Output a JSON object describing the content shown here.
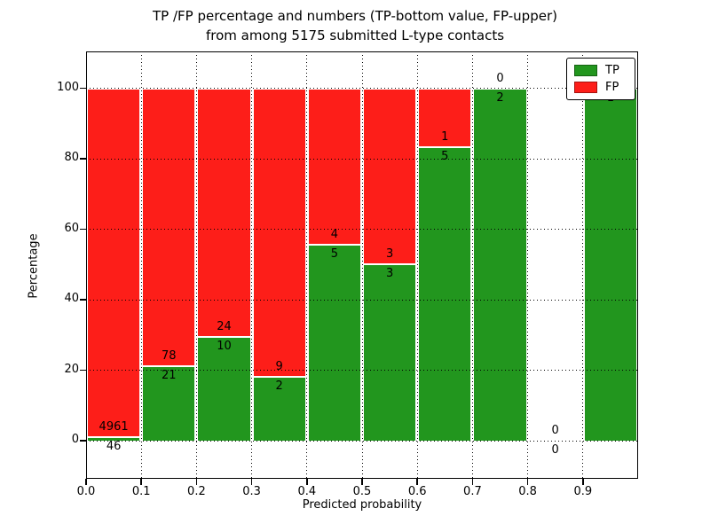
{
  "title_line1": "TP /FP percentage and numbers (TP-bottom value, FP-upper)",
  "title_line2": "from among 5175 submitted L-type contacts",
  "chart_data": {
    "type": "bar",
    "stacked": true,
    "title": "TP /FP percentage and numbers (TP-bottom value, FP-upper) from among 5175 submitted L-type contacts",
    "xlabel": "Predicted probability",
    "ylabel": "Percentage",
    "x_bin_edges": [
      0.0,
      0.1,
      0.2,
      0.3,
      0.4,
      0.5,
      0.6,
      0.7,
      0.8,
      0.9,
      1.0
    ],
    "x_tick_labels": [
      "0.0",
      "0.1",
      "0.2",
      "0.3",
      "0.4",
      "0.5",
      "0.6",
      "0.7",
      "0.8",
      "0.9"
    ],
    "y_ticks": [
      0,
      20,
      40,
      60,
      80,
      100
    ],
    "xlim": [
      0.0,
      1.0
    ],
    "ylim": [
      -11,
      110
    ],
    "grid": true,
    "bars_are_percent_stacked_to": 100,
    "series": [
      {
        "name": "TP",
        "color": "#22961e",
        "counts": [
          46,
          21,
          10,
          2,
          5,
          3,
          5,
          2,
          0,
          1
        ]
      },
      {
        "name": "FP",
        "color": "#fd1e19",
        "counts": [
          4961,
          78,
          24,
          9,
          4,
          3,
          1,
          0,
          0,
          0
        ]
      }
    ],
    "tp_percent_by_bin": [
      0.92,
      21.21,
      29.41,
      18.18,
      55.56,
      50.0,
      83.33,
      100.0,
      null,
      100.0
    ],
    "legend": {
      "position": "upper right",
      "entries": [
        {
          "label": "TP",
          "color": "#22961e"
        },
        {
          "label": "FP",
          "color": "#fd1e19"
        }
      ]
    }
  }
}
